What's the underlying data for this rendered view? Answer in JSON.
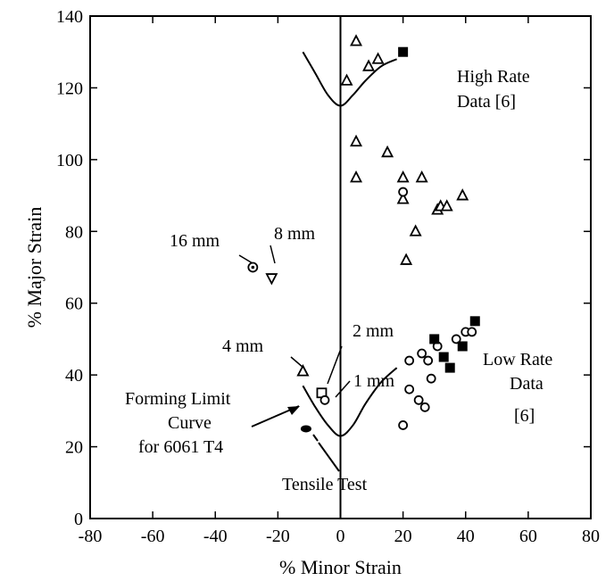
{
  "chart_data": {
    "type": "scatter",
    "xlabel": "% Minor Strain",
    "ylabel": "% Major Strain",
    "xlim": [
      -80,
      80
    ],
    "ylim": [
      0,
      140
    ],
    "xticks": [
      "-80",
      "-60",
      "-40",
      "-20",
      "0",
      "20",
      "40",
      "60",
      "80"
    ],
    "yticks": [
      "0",
      "20",
      "40",
      "60",
      "80",
      "100",
      "120",
      "140"
    ],
    "grid": false,
    "series": [
      {
        "marker": "open-triangle",
        "points": [
          [
            2,
            122
          ],
          [
            5,
            133
          ],
          [
            9,
            126
          ],
          [
            12,
            128
          ],
          [
            5,
            105
          ],
          [
            5,
            95
          ],
          [
            15,
            102
          ],
          [
            20,
            95
          ],
          [
            26,
            95
          ],
          [
            20,
            89
          ],
          [
            21,
            72
          ],
          [
            24,
            80
          ],
          [
            31,
            86
          ],
          [
            32,
            87
          ],
          [
            34,
            87
          ],
          [
            39,
            90
          ],
          [
            -12,
            41
          ]
        ]
      },
      {
        "marker": "open-diamond",
        "points": [
          [
            20,
            26
          ],
          [
            22,
            36
          ],
          [
            25,
            33
          ],
          [
            27,
            31
          ],
          [
            29,
            39
          ],
          [
            28,
            44
          ],
          [
            22,
            44
          ],
          [
            26,
            46
          ],
          [
            31,
            48
          ],
          [
            37,
            50
          ],
          [
            40,
            52
          ],
          [
            42,
            52
          ],
          [
            20,
            91
          ]
        ]
      },
      {
        "marker": "filled-square",
        "points": [
          [
            20,
            130
          ],
          [
            30,
            50
          ],
          [
            33,
            45
          ],
          [
            35,
            42
          ],
          [
            39,
            48
          ],
          [
            43,
            55
          ]
        ]
      },
      {
        "marker": "special",
        "points": [
          {
            "label": "16 mm",
            "x": -28,
            "y": 70,
            "marker": "circled-dot"
          },
          {
            "label": "8 mm",
            "x": -22,
            "y": 67,
            "marker": "down-triangle"
          },
          {
            "label": "4 mm",
            "x": -12,
            "y": 41,
            "marker": "open-triangle"
          },
          {
            "label": "2 mm",
            "x": -6,
            "y": 35,
            "marker": "open-square"
          },
          {
            "label": "1 mm",
            "x": -5,
            "y": 33,
            "marker": "open-diamond"
          },
          {
            "label": "Tensile Test",
            "x": -11,
            "y": 25,
            "marker": "filled-circle"
          }
        ]
      }
    ],
    "curves": [
      {
        "name": "High rate curve",
        "points": [
          [
            -12,
            130
          ],
          [
            -8,
            124
          ],
          [
            -4,
            118
          ],
          [
            0,
            115
          ],
          [
            4,
            118
          ],
          [
            8,
            122
          ],
          [
            13,
            126
          ],
          [
            18,
            128
          ]
        ]
      },
      {
        "name": "Forming limit curve",
        "points": [
          [
            -12,
            37
          ],
          [
            -8,
            31
          ],
          [
            -4,
            26
          ],
          [
            0,
            23
          ],
          [
            4,
            26
          ],
          [
            8,
            32
          ],
          [
            13,
            38
          ],
          [
            18,
            42
          ]
        ]
      }
    ],
    "annotations": {
      "high_rate_1": "High Rate",
      "high_rate_2": "Data [6]",
      "low_rate_1": "Low Rate",
      "low_rate_2": "Data",
      "low_rate_3": "[6]",
      "flc_1": "Forming Limit",
      "flc_2": "Curve",
      "flc_3": "for 6061 T4",
      "tensile": "Tensile Test",
      "mm16": "16 mm",
      "mm8": "8 mm",
      "mm4": "4 mm",
      "mm2": "2 mm",
      "mm1": "1 mm"
    }
  }
}
